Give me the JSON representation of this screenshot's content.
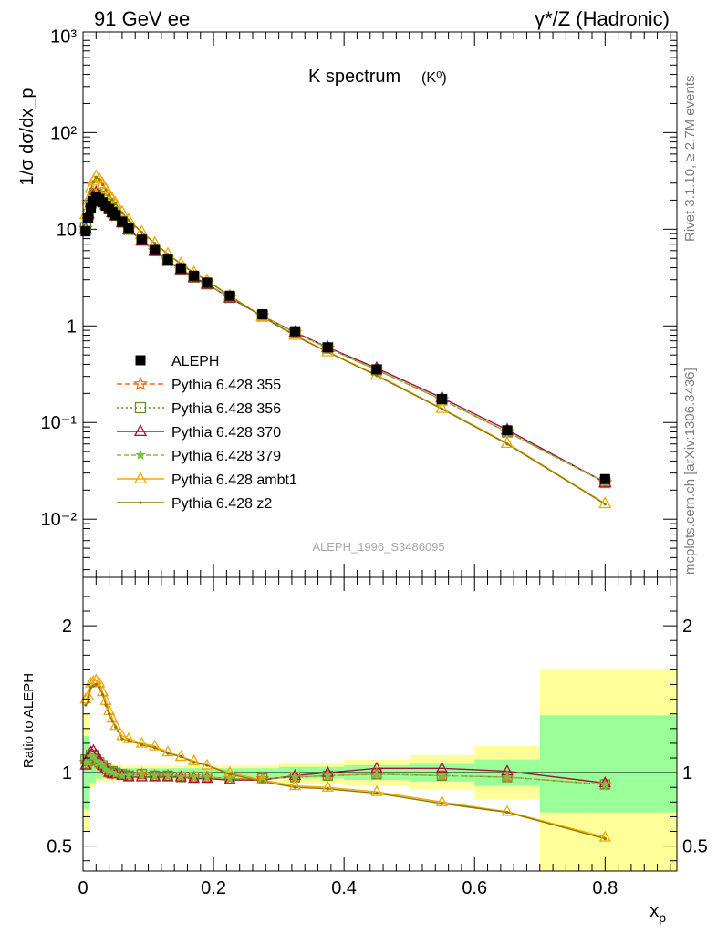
{
  "header": {
    "left": "91 GeV ee",
    "right": "γ*/Z (Hadronic)"
  },
  "side_labels": {
    "rivet": "Rivet 3.1.10, ≥ 2.7M events",
    "mcplots": "mcplots.cern.ch [arXiv:1306.3436]"
  },
  "watermark": "ALEPH_1996_S3486095",
  "chart_data": [
    {
      "type": "line",
      "title": "K spectrum",
      "title_suffix": "(K⁰)",
      "ylabel": "1/σ dσ/dx_p",
      "yscale": "log",
      "ylim": [
        0.0025,
        1100
      ],
      "xlim": [
        0,
        0.91
      ],
      "y_tick_labels": [
        "10⁻²",
        "10⁻¹",
        "1",
        "10",
        "10²",
        "10³"
      ],
      "legend_position": "middle-left",
      "x": [
        0.004,
        0.008,
        0.012,
        0.016,
        0.02,
        0.025,
        0.03,
        0.035,
        0.04,
        0.045,
        0.05,
        0.06,
        0.07,
        0.09,
        0.11,
        0.13,
        0.15,
        0.17,
        0.19,
        0.225,
        0.275,
        0.325,
        0.375,
        0.45,
        0.55,
        0.65,
        0.8
      ],
      "series": [
        {
          "name": "ALEPH",
          "color": "#000000",
          "marker": "square",
          "values": [
            9.5,
            13.2,
            16.5,
            19.5,
            21.5,
            20.5,
            19.0,
            17.5,
            16.2,
            15.0,
            14.0,
            12.0,
            10.2,
            7.8,
            6.1,
            4.85,
            3.95,
            3.3,
            2.8,
            2.05,
            1.32,
            0.88,
            0.6,
            0.355,
            0.175,
            0.083,
            0.026
          ]
        },
        {
          "name": "Pythia 6.428 355",
          "color": "#ff6a1a",
          "marker": "star",
          "dash": "6,3",
          "values": [
            10.2,
            14.0,
            18.2,
            21.5,
            23.2,
            21.8,
            19.8,
            17.9,
            16.3,
            15.0,
            13.9,
            11.8,
            10.0,
            7.7,
            6.0,
            4.75,
            3.85,
            3.2,
            2.72,
            1.97,
            1.27,
            0.85,
            0.59,
            0.35,
            0.172,
            0.08,
            0.024
          ]
        },
        {
          "name": "Pythia 6.428 356",
          "color": "#6b8e23",
          "marker": "open-square",
          "dash": "2,3",
          "values": [
            10.4,
            14.3,
            18.5,
            21.8,
            23.5,
            22.0,
            20.0,
            18.0,
            16.4,
            15.1,
            14.0,
            11.9,
            10.0,
            7.7,
            6.0,
            4.75,
            3.85,
            3.2,
            2.72,
            1.97,
            1.27,
            0.85,
            0.59,
            0.35,
            0.172,
            0.08,
            0.024
          ]
        },
        {
          "name": "Pythia 6.428 370",
          "color": "#a4133c",
          "marker": "open-triangle",
          "dash": "",
          "values": [
            10.0,
            14.5,
            18.8,
            22.5,
            24.0,
            22.3,
            20.0,
            18.0,
            16.2,
            14.9,
            13.8,
            11.7,
            9.9,
            7.6,
            5.95,
            4.7,
            3.82,
            3.17,
            2.7,
            1.95,
            1.26,
            0.86,
            0.6,
            0.365,
            0.18,
            0.084,
            0.024
          ]
        },
        {
          "name": "Pythia 6.428 379",
          "color": "#7cc242",
          "marker": "filled-star",
          "dash": "5,3",
          "values": [
            10.2,
            14.1,
            18.3,
            21.6,
            23.3,
            21.9,
            19.9,
            17.9,
            16.3,
            15.0,
            13.9,
            11.8,
            10.0,
            7.7,
            6.0,
            4.75,
            3.85,
            3.2,
            2.72,
            1.97,
            1.27,
            0.85,
            0.59,
            0.35,
            0.172,
            0.08,
            0.024
          ]
        },
        {
          "name": "Pythia 6.428 ambt1",
          "color": "#f0a800",
          "marker": "open-triangle",
          "dash": "",
          "values": [
            14.2,
            20.0,
            26.5,
            31.5,
            35.0,
            33.0,
            29.5,
            26.0,
            23.0,
            20.5,
            18.5,
            15.0,
            12.5,
            9.4,
            7.2,
            5.55,
            4.4,
            3.55,
            2.95,
            2.05,
            1.25,
            0.8,
            0.54,
            0.31,
            0.14,
            0.061,
            0.0145
          ]
        },
        {
          "name": "Pythia 6.428 z2",
          "color": "#8c7a00",
          "marker": "dot",
          "dash": "",
          "values": [
            13.9,
            19.6,
            26.0,
            31.0,
            34.5,
            32.5,
            29.0,
            25.6,
            22.7,
            20.2,
            18.3,
            14.8,
            12.4,
            9.3,
            7.15,
            5.5,
            4.37,
            3.52,
            2.93,
            2.04,
            1.24,
            0.79,
            0.535,
            0.305,
            0.138,
            0.06,
            0.0143
          ]
        }
      ]
    },
    {
      "type": "line",
      "ylabel": "Ratio to ALEPH",
      "xlabel": "x_p",
      "ylim": [
        0.33,
        2.33
      ],
      "xlim": [
        0,
        0.91
      ],
      "x_ticks": [
        0,
        0.2,
        0.4,
        0.6,
        0.8
      ],
      "y_ticks": [
        0.5,
        1,
        2
      ],
      "x_tick_labels": [
        "0",
        "0.2",
        "0.4",
        "0.6",
        "0.8"
      ],
      "y_tick_labels": [
        "0.5",
        "1",
        "2"
      ],
      "reference_line": 1,
      "uncertainty_bands": {
        "bins": [
          0,
          0.01,
          0.02,
          0.05,
          0.1,
          0.2,
          0.3,
          0.4,
          0.5,
          0.6,
          0.7,
          0.91
        ],
        "green": [
          [
            0.75,
            1.25
          ],
          [
            0.93,
            1.07
          ],
          [
            0.96,
            1.04
          ],
          [
            0.97,
            1.03
          ],
          [
            0.97,
            1.03
          ],
          [
            0.97,
            1.03
          ],
          [
            0.96,
            1.04
          ],
          [
            0.95,
            1.05
          ],
          [
            0.94,
            1.06
          ],
          [
            0.91,
            1.09
          ],
          [
            0.73,
            1.39
          ]
        ],
        "yellow": [
          [
            0.6,
            1.4
          ],
          [
            0.9,
            1.1
          ],
          [
            0.94,
            1.06
          ],
          [
            0.95,
            1.05
          ],
          [
            0.95,
            1.05
          ],
          [
            0.95,
            1.05
          ],
          [
            0.93,
            1.07
          ],
          [
            0.91,
            1.09
          ],
          [
            0.89,
            1.12
          ],
          [
            0.82,
            1.18
          ],
          [
            0.33,
            1.7
          ]
        ]
      },
      "series": [
        {
          "name": "Pythia 6.428 355",
          "values": [
            1.07,
            1.06,
            1.1,
            1.1,
            1.08,
            1.06,
            1.04,
            1.02,
            1.0,
            1.0,
            0.99,
            0.98,
            0.98,
            0.99,
            0.98,
            0.98,
            0.97,
            0.97,
            0.97,
            0.96,
            0.96,
            0.97,
            0.98,
            0.99,
            0.98,
            0.97,
            0.92
          ]
        },
        {
          "name": "Pythia 6.428 356",
          "values": [
            1.09,
            1.08,
            1.12,
            1.12,
            1.09,
            1.07,
            1.05,
            1.03,
            1.01,
            1.01,
            1.0,
            0.99,
            0.98,
            0.99,
            0.98,
            0.98,
            0.97,
            0.97,
            0.97,
            0.96,
            0.96,
            0.97,
            0.98,
            0.99,
            0.98,
            0.97,
            0.92
          ]
        },
        {
          "name": "Pythia 6.428 370",
          "values": [
            1.05,
            1.1,
            1.14,
            1.15,
            1.12,
            1.09,
            1.05,
            1.03,
            1.0,
            0.99,
            0.99,
            0.98,
            0.97,
            0.97,
            0.97,
            0.97,
            0.97,
            0.96,
            0.96,
            0.95,
            0.95,
            0.98,
            1.0,
            1.03,
            1.03,
            1.01,
            0.93
          ]
        },
        {
          "name": "Pythia 6.428 379",
          "values": [
            1.07,
            1.07,
            1.11,
            1.11,
            1.08,
            1.07,
            1.05,
            1.02,
            1.01,
            1.0,
            0.99,
            0.98,
            0.98,
            0.99,
            0.98,
            0.98,
            0.97,
            0.97,
            0.97,
            0.96,
            0.96,
            0.97,
            0.98,
            0.99,
            0.98,
            0.97,
            0.92
          ]
        },
        {
          "name": "Pythia 6.428 ambt1",
          "values": [
            1.5,
            1.52,
            1.61,
            1.62,
            1.63,
            1.61,
            1.55,
            1.49,
            1.42,
            1.37,
            1.32,
            1.25,
            1.23,
            1.2,
            1.18,
            1.14,
            1.11,
            1.08,
            1.05,
            1.0,
            0.95,
            0.91,
            0.9,
            0.87,
            0.8,
            0.735,
            0.56
          ]
        },
        {
          "name": "Pythia 6.428 z2",
          "values": [
            1.46,
            1.48,
            1.58,
            1.59,
            1.6,
            1.58,
            1.53,
            1.46,
            1.4,
            1.35,
            1.31,
            1.23,
            1.22,
            1.19,
            1.17,
            1.13,
            1.11,
            1.07,
            1.05,
            0.99,
            0.94,
            0.9,
            0.89,
            0.86,
            0.79,
            0.73,
            0.55
          ]
        }
      ]
    }
  ]
}
